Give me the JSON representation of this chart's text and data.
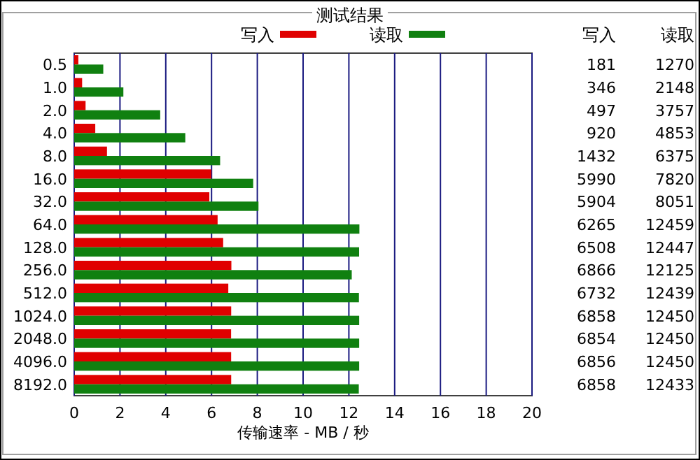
{
  "chart_data": {
    "type": "bar",
    "orientation": "horizontal",
    "title": "测试结果",
    "xlabel": "传输速率 - MB / 秒",
    "categories": [
      "0.5",
      "1.0",
      "2.0",
      "4.0",
      "8.0",
      "16.0",
      "32.0",
      "64.0",
      "128.0",
      "256.0",
      "512.0",
      "1024.0",
      "2048.0",
      "4096.0",
      "8192.0"
    ],
    "series": [
      {
        "name": "写入",
        "color": "#e00000",
        "values": [
          0.181,
          0.346,
          0.497,
          0.92,
          1.432,
          5.99,
          5.904,
          6.265,
          6.508,
          6.866,
          6.732,
          6.858,
          6.854,
          6.856,
          6.858
        ]
      },
      {
        "name": "读取",
        "color": "#108010",
        "values": [
          1.27,
          2.148,
          3.757,
          4.853,
          6.375,
          7.82,
          8.051,
          12.459,
          12.447,
          12.125,
          12.439,
          12.45,
          12.45,
          12.45,
          12.433
        ]
      }
    ],
    "annotations": [
      "181",
      "1270",
      "346",
      "2148",
      "497",
      "3757",
      "920",
      "4853",
      "1432",
      "6375",
      "5990",
      "7820",
      "5904",
      "8051",
      "6265",
      "12459",
      "6508",
      "12447",
      "6866",
      "12125",
      "6732",
      "12439",
      "6858",
      "12450",
      "6854",
      "12450",
      "6856",
      "12450",
      "6858",
      "12433"
    ],
    "xlim": [
      0,
      20
    ],
    "xticks": [
      0,
      2,
      4,
      6,
      8,
      10,
      12,
      14,
      16,
      18,
      20
    ],
    "grid": "x",
    "legend": "top"
  }
}
